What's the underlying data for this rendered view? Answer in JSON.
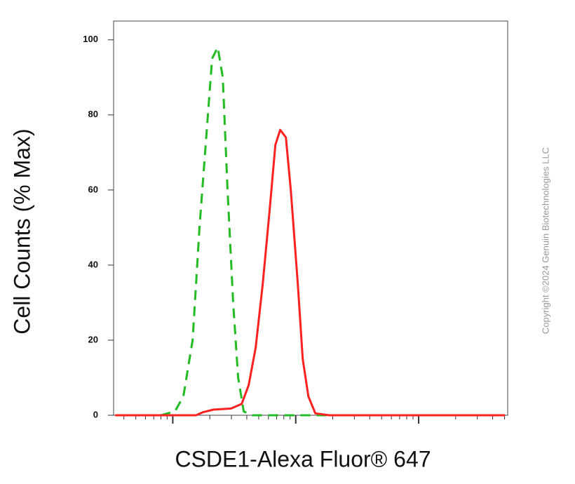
{
  "chart_data": {
    "type": "line",
    "x_label": "CSDE1-Alexa Fluor® 647",
    "y_label": "Cell Counts (% Max)",
    "watermark": "Copyright ©2024 Genuin Biotechnologies LLC",
    "xscale": "log",
    "xlim": [
      33,
      53000
    ],
    "xticks": [
      100,
      1000,
      10000
    ],
    "xticks_minor": [
      40,
      50,
      60,
      70,
      80,
      90,
      200,
      300,
      400,
      500,
      600,
      700,
      800,
      900,
      2000,
      3000,
      4000,
      5000,
      6000,
      7000,
      8000,
      9000,
      20000,
      30000,
      40000,
      50000
    ],
    "ylim": [
      0,
      105
    ],
    "yticks": [
      0,
      20,
      40,
      60,
      80,
      100
    ],
    "series": [
      {
        "color": "#22bb22",
        "dash": true,
        "x": [
          80,
          104,
          122,
          145,
          165,
          188,
          209,
          232,
          255,
          279,
          310,
          340,
          378,
          442,
          50500
        ],
        "values": [
          0,
          1,
          5,
          20,
          50,
          75,
          95,
          98,
          90,
          60,
          30,
          10,
          1,
          0,
          0
        ]
      },
      {
        "color": "#ff2020",
        "dash": false,
        "x": [
          34,
          154,
          176,
          214,
          298,
          363,
          414,
          472,
          539,
          615,
          683,
          748,
          832,
          912,
          1040,
          1140,
          1268,
          1445,
          1880,
          50500
        ],
        "values": [
          0,
          0,
          0.8,
          1.5,
          1.8,
          3,
          8,
          18,
          35,
          55,
          72,
          76,
          74,
          60,
          35,
          15,
          5,
          0.5,
          0,
          0
        ]
      }
    ]
  }
}
